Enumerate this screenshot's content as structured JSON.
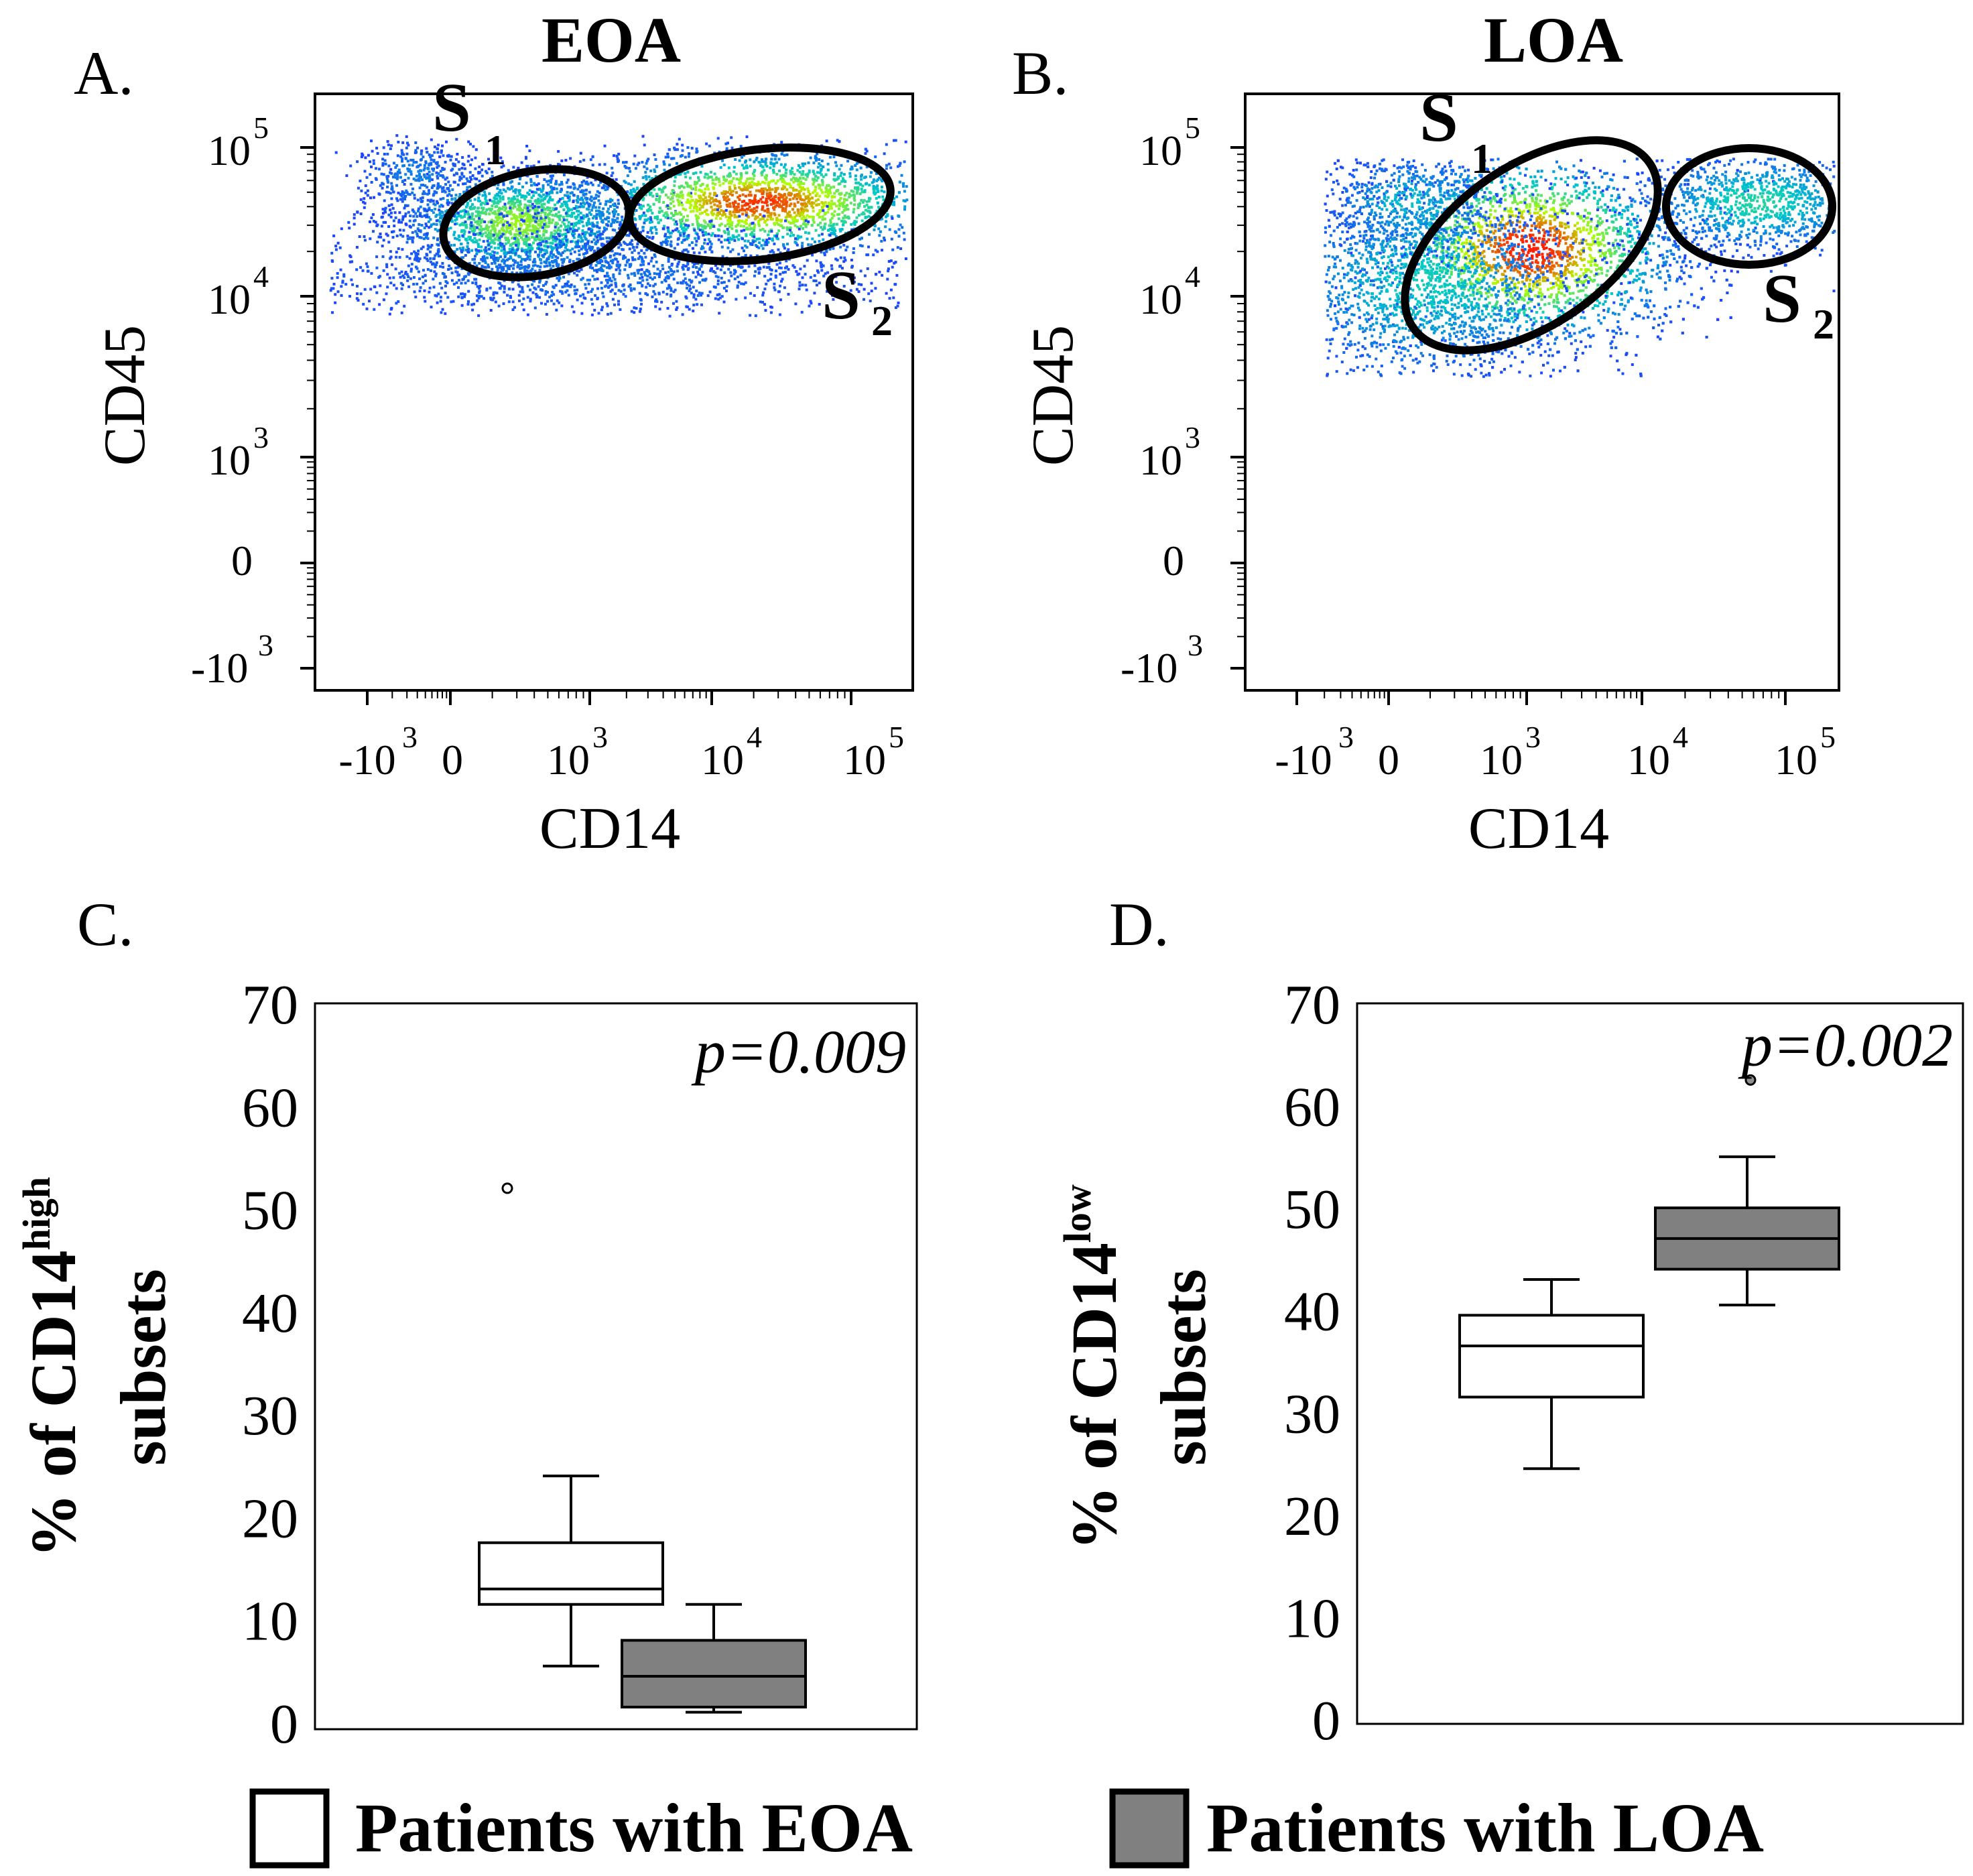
{
  "figure": {
    "legend": {
      "items": [
        {
          "label": "Patients with EOA",
          "color": "#ffffff"
        },
        {
          "label": "Patients with LOA",
          "color": "#808080"
        }
      ]
    }
  },
  "colors": {
    "density_low": "#1f3cff",
    "density_mid": "#00c8c8",
    "density_midhigh": "#b4ff00",
    "density_high": "#ff1e00",
    "gate": "#000000",
    "loa_box": "#808080",
    "outlier_eoa": "#ffffff",
    "outlier_loa": "#909090"
  },
  "chart_data": [
    {
      "type": "scatter",
      "subtype": "flow-cytometry-density",
      "panel": "A.",
      "title": "EOA",
      "xlabel": "CD14",
      "ylabel": "CD45",
      "x_tick_labels": [
        {
          "base": "-10",
          "exp": "3",
          "value": -1000
        },
        {
          "base": "0",
          "exp": "",
          "value": 0
        },
        {
          "base": "10",
          "exp": "3",
          "value": 1000
        },
        {
          "base": "10",
          "exp": "4",
          "value": 10000
        },
        {
          "base": "10",
          "exp": "5",
          "value": 100000
        }
      ],
      "y_tick_labels": [
        {
          "base": "-10",
          "exp": "3",
          "value": -1000
        },
        {
          "base": "0",
          "exp": "",
          "value": 0
        },
        {
          "base": "10",
          "exp": "3",
          "value": 1000
        },
        {
          "base": "10",
          "exp": "4",
          "value": 10000
        },
        {
          "base": "10",
          "exp": "5",
          "value": 100000
        }
      ],
      "gates": [
        {
          "name": "S",
          "sub": "1"
        },
        {
          "name": "S",
          "sub": "2"
        }
      ]
    },
    {
      "type": "scatter",
      "subtype": "flow-cytometry-density",
      "panel": "B.",
      "title": "LOA",
      "xlabel": "CD14",
      "ylabel": "CD45",
      "x_tick_labels": [
        {
          "base": "-10",
          "exp": "3",
          "value": -1000
        },
        {
          "base": "0",
          "exp": "",
          "value": 0
        },
        {
          "base": "10",
          "exp": "3",
          "value": 1000
        },
        {
          "base": "10",
          "exp": "4",
          "value": 10000
        },
        {
          "base": "10",
          "exp": "5",
          "value": 100000
        }
      ],
      "y_tick_labels": [
        {
          "base": "-10",
          "exp": "3",
          "value": -1000
        },
        {
          "base": "0",
          "exp": "",
          "value": 0
        },
        {
          "base": "10",
          "exp": "3",
          "value": 1000
        },
        {
          "base": "10",
          "exp": "4",
          "value": 10000
        },
        {
          "base": "10",
          "exp": "5",
          "value": 100000
        }
      ],
      "gates": [
        {
          "name": "S",
          "sub": "1"
        },
        {
          "name": "S",
          "sub": "2"
        }
      ]
    },
    {
      "type": "box",
      "panel": "C.",
      "ylabel_pre": "% of CD14",
      "ylabel_sup": "high",
      "ylabel_line2": "subsets",
      "ylim": [
        0,
        70
      ],
      "yticks": [
        0,
        10,
        20,
        30,
        40,
        50,
        60,
        70
      ],
      "annotation": "p=0.009",
      "series": [
        {
          "name": "Patients with EOA",
          "min": 5.5,
          "q1": 11.5,
          "median": 13,
          "q3": 17.5,
          "max": 24,
          "outliers": [
            52
          ]
        },
        {
          "name": "Patients with LOA",
          "min": 1,
          "q1": 1.5,
          "median": 4.5,
          "q3": 8,
          "max": 11.5,
          "outliers": []
        }
      ]
    },
    {
      "type": "box",
      "panel": "D.",
      "ylabel_pre": "% of CD14",
      "ylabel_sup": "low",
      "ylabel_line2": "subsets",
      "ylim": [
        0,
        70
      ],
      "yticks": [
        0,
        10,
        20,
        30,
        40,
        50,
        60,
        70
      ],
      "annotation": "p=0.002",
      "series": [
        {
          "name": "Patients with EOA",
          "min": 24.5,
          "q1": 31.5,
          "median": 36.5,
          "q3": 39.5,
          "max": 43,
          "outliers": []
        },
        {
          "name": "Patients with LOA",
          "min": 40.5,
          "q1": 44,
          "median": 47,
          "q3": 50,
          "max": 55,
          "outliers": [
            62.5
          ]
        }
      ]
    }
  ]
}
